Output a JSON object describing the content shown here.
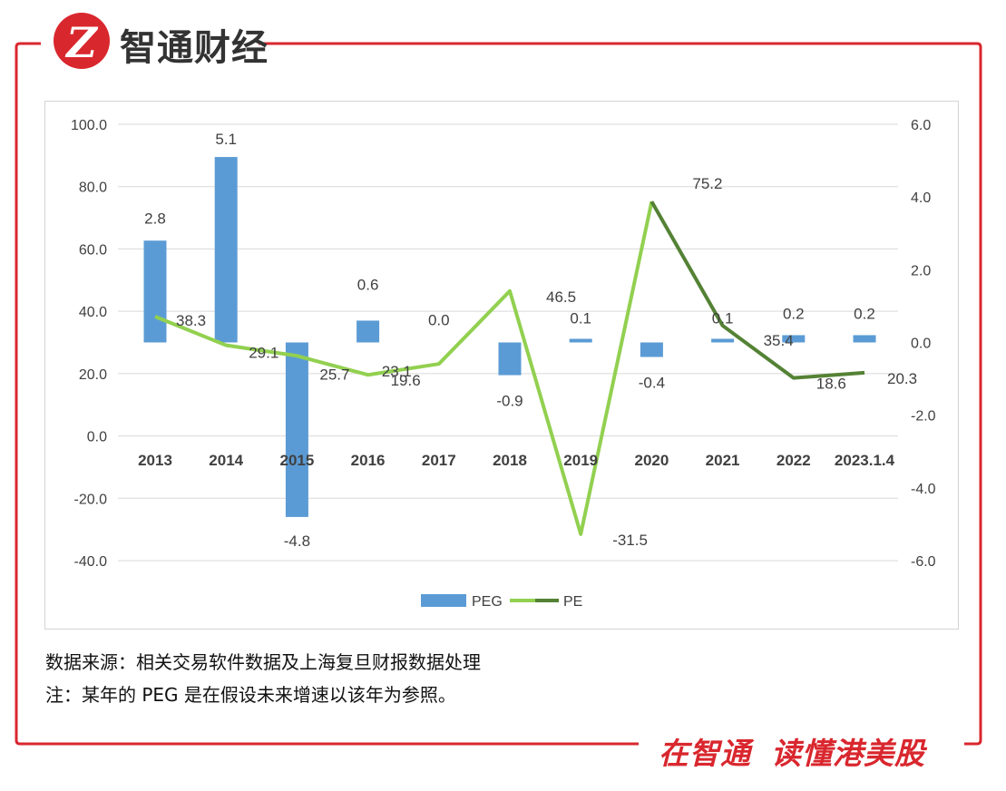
{
  "brand": {
    "logo_letter": "Z",
    "name": "智通财经",
    "slogan_part1": "在智通",
    "slogan_part2": "读懂港美股",
    "accent": "#d9272e"
  },
  "notes": {
    "source": "数据来源：相关交易软件数据及上海复旦财报数据处理",
    "note": "注：某年的 PEG 是在假设未来增速以该年为参照。"
  },
  "chart_data": {
    "type": "bar+line",
    "categories": [
      "2013",
      "2014",
      "2015",
      "2016",
      "2017",
      "2018",
      "2019",
      "2020",
      "2021",
      "2022",
      "2023.1.4"
    ],
    "left_axis": {
      "min": -40,
      "max": 100,
      "step": 20,
      "ticks": [
        "100.0",
        "80.0",
        "60.0",
        "40.0",
        "20.0",
        "0.0",
        "-20.0",
        "-40.0"
      ]
    },
    "right_axis": {
      "min": -6,
      "max": 6,
      "step": 2,
      "ticks": [
        "6.0",
        "4.0",
        "2.0",
        "0.0",
        "-2.0",
        "-4.0",
        "-6.0"
      ]
    },
    "series": [
      {
        "name": "PEG",
        "type": "bar",
        "axis": "right",
        "color": "#5b9bd5",
        "values": [
          2.8,
          5.1,
          -4.8,
          0.6,
          0.0,
          -0.9,
          0.1,
          -0.4,
          0.1,
          0.2,
          0.2
        ],
        "labels": [
          "2.8",
          "5.1",
          "-4.8",
          "0.6",
          "0.0",
          "-0.9",
          "0.1",
          "-0.4",
          "0.1",
          "0.2",
          "0.2"
        ]
      },
      {
        "name": "PE",
        "type": "line",
        "axis": "left",
        "color": "#92d050",
        "color_recent": "#548235",
        "values": [
          38.3,
          29.1,
          25.7,
          19.6,
          23.1,
          46.5,
          -31.5,
          75.2,
          35.4,
          18.6,
          20.3
        ],
        "labels": [
          "38.3",
          "29.1",
          "25.7",
          "19.6",
          "23.1",
          "46.5",
          "-31.5",
          "75.2",
          "35.4",
          "18.6",
          "20.3"
        ]
      }
    ],
    "grid": "horizontal",
    "legend": "bottom-center"
  }
}
